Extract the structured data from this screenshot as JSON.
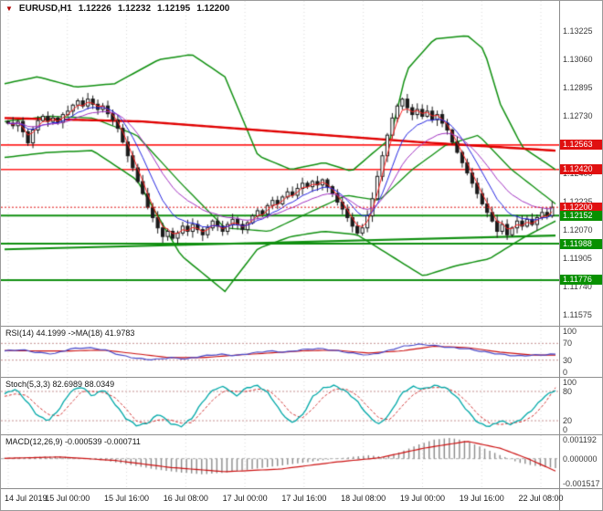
{
  "header": {
    "marker": "▼",
    "symbol": "EURUSD,H1",
    "open": "1.12226",
    "high": "1.12232",
    "low": "1.12195",
    "close": "1.12200"
  },
  "colors": {
    "bg": "#ffffff",
    "border": "#9a9a9a",
    "grid": "#d9d9d9",
    "axis_text": "#3a3a3a",
    "bull": "#ffffff",
    "bear": "#1a1a1a",
    "candle_outline": "#1a1a1a",
    "bollinger": "#0f8f0f",
    "slow_ma": "#e00000",
    "resistance": "#ff2020",
    "support": "#0f8f0f",
    "tag_red": "#e01010",
    "tag_green": "#089000",
    "fast_ma": [
      "#ff2020",
      "#2424e0",
      "#a030c0"
    ],
    "rsi_line": "#4848c8",
    "rsi_ma": "#cc1010",
    "stoch_k": "#00a8a8",
    "stoch_d": "#d03030",
    "macd_hist": "#8a8a8a",
    "macd_signal": "#cc1010",
    "level_dash": "#c49090",
    "zero_dash": "#aaaaaa"
  },
  "chart_data": [
    {
      "type": "candlestick",
      "symbol": "EURUSD",
      "timeframe": "H1",
      "current": {
        "open": 1.12226,
        "high": 1.12232,
        "low": 1.12195,
        "close": 1.122
      },
      "y_range": [
        1.1151,
        1.13402
      ],
      "y_axis_labels": [
        "1.13225",
        "1.13060",
        "1.12895",
        "1.12730",
        "1.12565",
        "1.12400",
        "1.12235",
        "1.12070",
        "1.11905",
        "1.11740",
        "1.11575"
      ],
      "x_labels": [
        "14 Jul 2019",
        "15 Jul 00:00",
        "15 Jul 16:00",
        "16 Jul 08:00",
        "17 Jul 00:00",
        "17 Jul 16:00",
        "18 Jul 08:00",
        "19 Jul 00:00",
        "19 Jul 16:00",
        "22 Jul 08:00"
      ],
      "first_open": 1.127,
      "closes": [
        1.1269,
        1.12675,
        1.127,
        1.1264,
        1.12575,
        1.1265,
        1.12705,
        1.1273,
        1.127,
        1.1272,
        1.12695,
        1.1274,
        1.1276,
        1.12795,
        1.1282,
        1.1279,
        1.1283,
        1.128,
        1.1277,
        1.1279,
        1.12745,
        1.1271,
        1.1266,
        1.1258,
        1.125,
        1.1243,
        1.1235,
        1.1228,
        1.122,
        1.1214,
        1.1208,
        1.1203,
        1.1206,
        1.1202,
        1.1205,
        1.1209,
        1.1206,
        1.121,
        1.1207,
        1.1204,
        1.1208,
        1.1212,
        1.1209,
        1.1206,
        1.121,
        1.1213,
        1.121,
        1.1207,
        1.1211,
        1.1215,
        1.1218,
        1.1216,
        1.1221,
        1.1224,
        1.1222,
        1.1226,
        1.1229,
        1.1227,
        1.1231,
        1.1234,
        1.1232,
        1.1235,
        1.1233,
        1.1236,
        1.1232,
        1.1228,
        1.1223,
        1.1219,
        1.1214,
        1.1209,
        1.1205,
        1.1208,
        1.1215,
        1.1225,
        1.1238,
        1.125,
        1.1262,
        1.1272,
        1.1279,
        1.1283,
        1.1278,
        1.1274,
        1.1277,
        1.1273,
        1.1276,
        1.1271,
        1.1274,
        1.1269,
        1.1265,
        1.1258,
        1.1252,
        1.1246,
        1.124,
        1.1234,
        1.1228,
        1.1222,
        1.1217,
        1.1212,
        1.1206,
        1.121,
        1.1204,
        1.1208,
        1.1212,
        1.1209,
        1.1213,
        1.121,
        1.1214,
        1.1217,
        1.1215,
        1.122
      ],
      "fast_ma_periods": [
        3,
        8,
        16
      ],
      "overlays": {
        "bollinger_upper": [
          [
            0,
            1.1292
          ],
          [
            0.06,
            1.1296
          ],
          [
            0.13,
            1.129
          ],
          [
            0.2,
            1.1292
          ],
          [
            0.28,
            1.1306
          ],
          [
            0.34,
            1.1309
          ],
          [
            0.4,
            1.1296
          ],
          [
            0.46,
            1.125
          ],
          [
            0.52,
            1.1242
          ],
          [
            0.58,
            1.1246
          ],
          [
            0.63,
            1.1241
          ],
          [
            0.67,
            1.1252
          ],
          [
            0.7,
            1.126
          ],
          [
            0.73,
            1.13
          ],
          [
            0.78,
            1.1318
          ],
          [
            0.84,
            1.132
          ],
          [
            0.87,
            1.1312
          ],
          [
            0.9,
            1.128
          ],
          [
            0.94,
            1.1255
          ],
          [
            1,
            1.1242
          ]
        ],
        "bollinger_middle": [
          [
            0,
            1.127
          ],
          [
            0.08,
            1.1273
          ],
          [
            0.16,
            1.1272
          ],
          [
            0.24,
            1.1262
          ],
          [
            0.32,
            1.1234
          ],
          [
            0.4,
            1.1208
          ],
          [
            0.48,
            1.1206
          ],
          [
            0.56,
            1.1218
          ],
          [
            0.62,
            1.1227
          ],
          [
            0.68,
            1.1224
          ],
          [
            0.74,
            1.1242
          ],
          [
            0.8,
            1.1256
          ],
          [
            0.86,
            1.1262
          ],
          [
            0.92,
            1.1242
          ],
          [
            1,
            1.1222
          ]
        ],
        "bollinger_lower": [
          [
            0,
            1.1249
          ],
          [
            0.08,
            1.1252
          ],
          [
            0.16,
            1.1253
          ],
          [
            0.24,
            1.1236
          ],
          [
            0.32,
            1.1192
          ],
          [
            0.4,
            1.1171
          ],
          [
            0.46,
            1.1196
          ],
          [
            0.52,
            1.1203
          ],
          [
            0.58,
            1.1206
          ],
          [
            0.64,
            1.1204
          ],
          [
            0.7,
            1.1192
          ],
          [
            0.76,
            1.118
          ],
          [
            0.82,
            1.1186
          ],
          [
            0.88,
            1.119
          ],
          [
            0.94,
            1.1202
          ],
          [
            1,
            1.1212
          ]
        ],
        "slow_ma": [
          [
            0,
            1.1272
          ],
          [
            0.25,
            1.127
          ],
          [
            0.5,
            1.1264
          ],
          [
            0.75,
            1.1258
          ],
          [
            1,
            1.1253
          ]
        ],
        "resistance_lines": [
          {
            "p": 1.12563,
            "t": "1.12563"
          },
          {
            "p": 1.1242,
            "t": "1.12420"
          }
        ],
        "support_lines": [
          {
            "p": 1.12152,
            "t": "1.12152"
          },
          {
            "p": 1.11988,
            "t": "1.11988"
          },
          {
            "p": 1.11776,
            "t": "1.11776"
          }
        ],
        "trendline": [
          [
            0,
            1.11955
          ],
          [
            1,
            1.12035
          ]
        ],
        "current_price": {
          "p": 1.122,
          "t": "1.12200"
        }
      }
    },
    {
      "type": "line",
      "name": "RSI",
      "label": "RSI(14) 44.1999 ->MA(18) 41.9783",
      "value": 44.1999,
      "ma_value": 41.9783,
      "levels": [
        70,
        30
      ],
      "y_axis_labels": [
        {
          "v": 100,
          "t": "100"
        },
        {
          "v": 70,
          "t": "70"
        },
        {
          "v": 30,
          "t": "30"
        },
        {
          "v": 0,
          "t": "0"
        }
      ],
      "y_range": [
        -10,
        110
      ],
      "points": [
        [
          0,
          52
        ],
        [
          0.03,
          55
        ],
        [
          0.06,
          48
        ],
        [
          0.09,
          45
        ],
        [
          0.12,
          57
        ],
        [
          0.15,
          60
        ],
        [
          0.18,
          55
        ],
        [
          0.21,
          42
        ],
        [
          0.24,
          34
        ],
        [
          0.27,
          31
        ],
        [
          0.3,
          36
        ],
        [
          0.33,
          33
        ],
        [
          0.36,
          40
        ],
        [
          0.39,
          44
        ],
        [
          0.42,
          41
        ],
        [
          0.45,
          47
        ],
        [
          0.48,
          52
        ],
        [
          0.51,
          49
        ],
        [
          0.54,
          55
        ],
        [
          0.57,
          58
        ],
        [
          0.6,
          53
        ],
        [
          0.63,
          47
        ],
        [
          0.66,
          42
        ],
        [
          0.69,
          50
        ],
        [
          0.72,
          62
        ],
        [
          0.75,
          68
        ],
        [
          0.78,
          65
        ],
        [
          0.81,
          60
        ],
        [
          0.84,
          57
        ],
        [
          0.87,
          50
        ],
        [
          0.9,
          44
        ],
        [
          0.93,
          40
        ],
        [
          0.96,
          42
        ],
        [
          1,
          44.2
        ]
      ],
      "ma_points": [
        [
          0,
          53
        ],
        [
          0.06,
          52
        ],
        [
          0.12,
          52
        ],
        [
          0.18,
          54
        ],
        [
          0.24,
          45
        ],
        [
          0.3,
          36
        ],
        [
          0.36,
          36
        ],
        [
          0.42,
          42
        ],
        [
          0.48,
          47
        ],
        [
          0.54,
          52
        ],
        [
          0.6,
          54
        ],
        [
          0.66,
          47
        ],
        [
          0.72,
          52
        ],
        [
          0.78,
          63
        ],
        [
          0.84,
          60
        ],
        [
          0.9,
          49
        ],
        [
          0.96,
          42
        ],
        [
          1,
          42
        ]
      ]
    },
    {
      "type": "line",
      "name": "Stochastic",
      "label": "Stoch(5,3,3) 82.6989 88.0349",
      "k_value": 82.6989,
      "d_value": 88.0349,
      "levels": [
        80,
        20
      ],
      "y_axis_labels": [
        {
          "v": 100,
          "t": "100"
        },
        {
          "v": 80,
          "t": "80"
        },
        {
          "v": 20,
          "t": "20"
        },
        {
          "v": 0,
          "t": "0"
        }
      ],
      "y_range": [
        -8,
        108
      ],
      "k_points": [
        [
          0,
          75
        ],
        [
          0.02,
          85
        ],
        [
          0.04,
          60
        ],
        [
          0.06,
          30
        ],
        [
          0.08,
          20
        ],
        [
          0.1,
          45
        ],
        [
          0.12,
          80
        ],
        [
          0.14,
          90
        ],
        [
          0.16,
          70
        ],
        [
          0.18,
          85
        ],
        [
          0.2,
          55
        ],
        [
          0.22,
          25
        ],
        [
          0.24,
          10
        ],
        [
          0.26,
          15
        ],
        [
          0.28,
          35
        ],
        [
          0.3,
          15
        ],
        [
          0.32,
          8
        ],
        [
          0.34,
          25
        ],
        [
          0.36,
          60
        ],
        [
          0.38,
          85
        ],
        [
          0.4,
          90
        ],
        [
          0.42,
          70
        ],
        [
          0.44,
          88
        ],
        [
          0.46,
          92
        ],
        [
          0.48,
          75
        ],
        [
          0.5,
          40
        ],
        [
          0.52,
          15
        ],
        [
          0.54,
          30
        ],
        [
          0.56,
          70
        ],
        [
          0.58,
          88
        ],
        [
          0.6,
          92
        ],
        [
          0.62,
          80
        ],
        [
          0.64,
          60
        ],
        [
          0.66,
          30
        ],
        [
          0.68,
          12
        ],
        [
          0.7,
          35
        ],
        [
          0.72,
          75
        ],
        [
          0.74,
          90
        ],
        [
          0.76,
          85
        ],
        [
          0.78,
          92
        ],
        [
          0.8,
          88
        ],
        [
          0.82,
          70
        ],
        [
          0.84,
          40
        ],
        [
          0.86,
          15
        ],
        [
          0.88,
          8
        ],
        [
          0.9,
          20
        ],
        [
          0.92,
          12
        ],
        [
          0.94,
          25
        ],
        [
          0.96,
          45
        ],
        [
          0.98,
          70
        ],
        [
          1,
          82.7
        ]
      ],
      "d_points": [
        [
          0,
          70
        ],
        [
          0.02,
          75
        ],
        [
          0.04,
          72
        ],
        [
          0.06,
          50
        ],
        [
          0.08,
          32
        ],
        [
          0.1,
          30
        ],
        [
          0.12,
          55
        ],
        [
          0.14,
          80
        ],
        [
          0.16,
          80
        ],
        [
          0.18,
          78
        ],
        [
          0.2,
          68
        ],
        [
          0.22,
          45
        ],
        [
          0.24,
          18
        ],
        [
          0.26,
          15
        ],
        [
          0.28,
          22
        ],
        [
          0.3,
          22
        ],
        [
          0.32,
          15
        ],
        [
          0.34,
          16
        ],
        [
          0.36,
          40
        ],
        [
          0.38,
          65
        ],
        [
          0.4,
          82
        ],
        [
          0.42,
          80
        ],
        [
          0.44,
          80
        ],
        [
          0.46,
          85
        ],
        [
          0.48,
          82
        ],
        [
          0.5,
          62
        ],
        [
          0.52,
          35
        ],
        [
          0.54,
          25
        ],
        [
          0.56,
          45
        ],
        [
          0.58,
          70
        ],
        [
          0.6,
          85
        ],
        [
          0.62,
          85
        ],
        [
          0.64,
          72
        ],
        [
          0.66,
          48
        ],
        [
          0.68,
          25
        ],
        [
          0.7,
          22
        ],
        [
          0.72,
          48
        ],
        [
          0.74,
          72
        ],
        [
          0.76,
          85
        ],
        [
          0.78,
          88
        ],
        [
          0.8,
          88
        ],
        [
          0.82,
          78
        ],
        [
          0.84,
          58
        ],
        [
          0.86,
          32
        ],
        [
          0.88,
          15
        ],
        [
          0.9,
          12
        ],
        [
          0.92,
          15
        ],
        [
          0.94,
          18
        ],
        [
          0.96,
          30
        ],
        [
          0.98,
          55
        ],
        [
          1,
          88
        ]
      ]
    },
    {
      "type": "macd",
      "name": "MACD",
      "label": "MACD(12,26,9) -0.000539 -0.000711",
      "macd_value": -0.000539,
      "signal_value": -0.000711,
      "y_axis_labels": [
        {
          "v": 0.001192,
          "t": "0.001192"
        },
        {
          "v": 0,
          "t": "0.000000"
        },
        {
          "v": -0.001517,
          "t": "-0.001517"
        }
      ],
      "y_range": [
        -0.0017,
        0.00135
      ],
      "histogram": [
        [
          0,
          5e-05
        ],
        [
          0.05,
          0.0001
        ],
        [
          0.1,
          0.00015
        ],
        [
          0.14,
          0
        ],
        [
          0.18,
          -0.0001
        ],
        [
          0.22,
          -0.0003
        ],
        [
          0.27,
          -0.0006
        ],
        [
          0.32,
          -0.0008
        ],
        [
          0.36,
          -0.0009
        ],
        [
          0.4,
          -0.0008
        ],
        [
          0.45,
          -0.0006
        ],
        [
          0.5,
          -0.0004
        ],
        [
          0.55,
          -0.0002
        ],
        [
          0.6,
          0
        ],
        [
          0.63,
          0.0001
        ],
        [
          0.66,
          0.0002
        ],
        [
          0.69,
          0.0001
        ],
        [
          0.72,
          0.0004
        ],
        [
          0.75,
          0.0008
        ],
        [
          0.78,
          0.0011
        ],
        [
          0.81,
          0.0012
        ],
        [
          0.84,
          0.001
        ],
        [
          0.87,
          0.0006
        ],
        [
          0.9,
          0.0002
        ],
        [
          0.93,
          -0.0002
        ],
        [
          0.96,
          -0.0004
        ],
        [
          1,
          -0.000539
        ]
      ],
      "signal": [
        [
          0,
          2e-05
        ],
        [
          0.1,
          0.0001
        ],
        [
          0.2,
          -0.0001
        ],
        [
          0.3,
          -0.0005
        ],
        [
          0.4,
          -0.00075
        ],
        [
          0.5,
          -0.0006
        ],
        [
          0.6,
          -0.0002
        ],
        [
          0.68,
          5e-05
        ],
        [
          0.76,
          0.0006
        ],
        [
          0.84,
          0.001
        ],
        [
          0.9,
          0.0006
        ],
        [
          0.95,
          0
        ],
        [
          1,
          -0.000711
        ]
      ]
    }
  ]
}
